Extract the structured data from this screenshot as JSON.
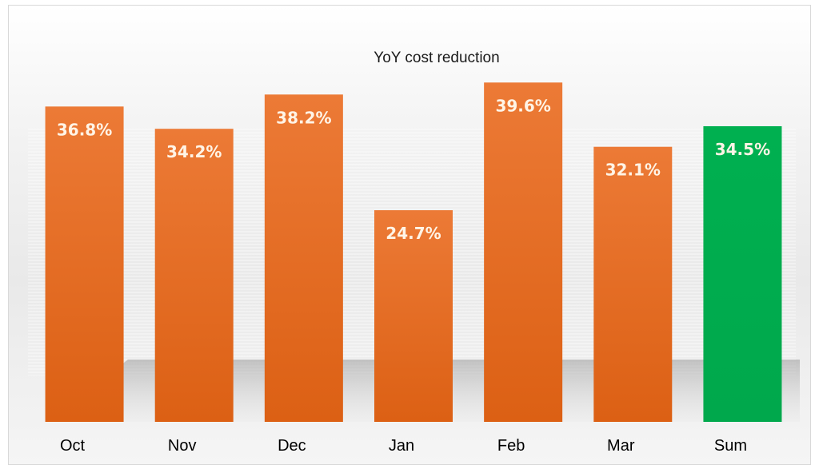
{
  "chart_data": {
    "type": "bar",
    "title": "YoY cost reduction",
    "categories": [
      "Oct",
      "Nov",
      "Dec",
      "Jan",
      "Feb",
      "Mar",
      "Sum"
    ],
    "values": [
      36.8,
      34.2,
      38.2,
      24.7,
      39.6,
      32.1,
      34.5
    ],
    "data_labels": [
      "36.8%",
      "34.2%",
      "38.2%",
      "24.7%",
      "39.6%",
      "32.1%",
      "34.5%"
    ],
    "unit": "%",
    "ylim": [
      0,
      40
    ],
    "grid": false,
    "legend": "none",
    "colors": {
      "bar": "#e8702a",
      "bar_dark": "#d65d12",
      "sum_bar": "#00b050",
      "label": "#fff4e6"
    }
  }
}
